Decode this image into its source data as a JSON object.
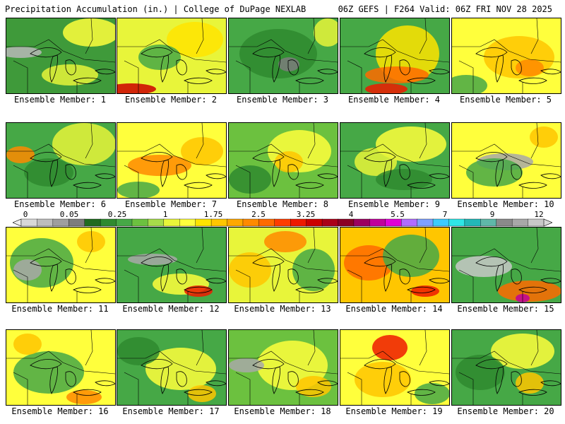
{
  "header": {
    "title_left": "Precipitation Accumulation (in.) | College of DuPage NEXLAB",
    "title_right": "06Z GEFS | F264 Valid: 06Z FRI NOV 28 2025"
  },
  "colorbar": {
    "labels": [
      "0",
      "0.05",
      "0.25",
      "1",
      "1.75",
      "2.5",
      "3.25",
      "4",
      "5.5",
      "7",
      "9",
      "12"
    ],
    "colors": [
      "#d8d8d8",
      "#bdbdbd",
      "#9f9f9f",
      "#7d7d7d",
      "#1f6b1f",
      "#2f8a2f",
      "#46a846",
      "#6cc13f",
      "#a6dc4a",
      "#e8f53a",
      "#ffff3c",
      "#ffe400",
      "#ffc600",
      "#ffa800",
      "#ff8a00",
      "#ff6a00",
      "#ff3c00",
      "#ee1a00",
      "#cc0000",
      "#aa0018",
      "#8b0024",
      "#9b0060",
      "#c0009b",
      "#e000d8",
      "#b06cff",
      "#7da0ff",
      "#3ccbff",
      "#2ee6e6",
      "#22b8b8",
      "#5fb8a8",
      "#8a8a8a",
      "#a8a8a8",
      "#c8c8c8"
    ]
  },
  "members": [
    {
      "label": "Ensemble Member: 1",
      "base": "#3f9a3a",
      "blobs": [
        [
          "#ffff3c",
          120,
          20,
          40,
          20
        ],
        [
          "#b9b9b9",
          20,
          48,
          30,
          8
        ],
        [
          "#e8f53a",
          90,
          80,
          40,
          15
        ]
      ]
    },
    {
      "label": "Ensemble Member: 2",
      "base": "#e8f53a",
      "blobs": [
        [
          "#ffe400",
          110,
          30,
          40,
          25
        ],
        [
          "#cc0000",
          20,
          100,
          35,
          8
        ],
        [
          "#46a846",
          60,
          55,
          30,
          18
        ]
      ]
    },
    {
      "label": "Ensemble Member: 3",
      "base": "#46a846",
      "blobs": [
        [
          "#2f8a2f",
          70,
          50,
          55,
          35
        ],
        [
          "#7d7d7d",
          85,
          65,
          15,
          10
        ],
        [
          "#e8f53a",
          140,
          20,
          20,
          20
        ]
      ]
    },
    {
      "label": "Ensemble Member: 4",
      "base": "#46a846",
      "blobs": [
        [
          "#ffe400",
          95,
          50,
          45,
          40
        ],
        [
          "#ff6a00",
          80,
          80,
          45,
          12
        ],
        [
          "#ee1a00",
          65,
          100,
          30,
          8
        ]
      ]
    },
    {
      "label": "Ensemble Member: 5",
      "base": "#ffff3c",
      "blobs": [
        [
          "#ffc600",
          95,
          55,
          50,
          30
        ],
        [
          "#46a846",
          20,
          95,
          30,
          15
        ],
        [
          "#ff8a00",
          110,
          70,
          20,
          12
        ]
      ]
    },
    {
      "label": "Ensemble Member: 6",
      "base": "#46a846",
      "blobs": [
        [
          "#e8f53a",
          110,
          30,
          45,
          30
        ],
        [
          "#ff8a00",
          20,
          45,
          20,
          12
        ],
        [
          "#2f8a2f",
          60,
          70,
          35,
          20
        ]
      ]
    },
    {
      "label": "Ensemble Member: 7",
      "base": "#ffff3c",
      "blobs": [
        [
          "#ff8a00",
          60,
          60,
          45,
          15
        ],
        [
          "#ffc600",
          120,
          40,
          30,
          20
        ],
        [
          "#46a846",
          30,
          95,
          30,
          12
        ]
      ]
    },
    {
      "label": "Ensemble Member: 8",
      "base": "#6cc13f",
      "blobs": [
        [
          "#ffff3c",
          100,
          40,
          45,
          30
        ],
        [
          "#ffc600",
          85,
          55,
          20,
          15
        ],
        [
          "#2f8a2f",
          30,
          80,
          30,
          20
        ]
      ]
    },
    {
      "label": "Ensemble Member: 9",
      "base": "#46a846",
      "blobs": [
        [
          "#ffff3c",
          100,
          30,
          50,
          25
        ],
        [
          "#e8f53a",
          50,
          55,
          30,
          20
        ],
        [
          "#2f8a2f",
          90,
          80,
          40,
          15
        ]
      ]
    },
    {
      "label": "Ensemble Member: 10",
      "base": "#ffff3c",
      "blobs": [
        [
          "#a8a8a8",
          75,
          55,
          40,
          12
        ],
        [
          "#46a846",
          60,
          70,
          40,
          20
        ],
        [
          "#ffc600",
          130,
          20,
          20,
          15
        ]
      ]
    },
    {
      "label": "Ensemble Member: 11",
      "base": "#ffff3c",
      "blobs": [
        [
          "#46a846",
          50,
          50,
          45,
          35
        ],
        [
          "#a8a8a8",
          30,
          60,
          20,
          15
        ],
        [
          "#ffc600",
          120,
          20,
          20,
          15
        ]
      ]
    },
    {
      "label": "Ensemble Member: 12",
      "base": "#46a846",
      "blobs": [
        [
          "#a8a8a8",
          50,
          45,
          35,
          8
        ],
        [
          "#ffff3c",
          90,
          80,
          40,
          15
        ],
        [
          "#ee1a00",
          115,
          90,
          20,
          8
        ]
      ]
    },
    {
      "label": "Ensemble Member: 13",
      "base": "#e8f53a",
      "blobs": [
        [
          "#ffc600",
          30,
          60,
          30,
          25
        ],
        [
          "#ff8a00",
          80,
          20,
          30,
          15
        ],
        [
          "#46a846",
          120,
          60,
          30,
          30
        ]
      ]
    },
    {
      "label": "Ensemble Member: 14",
      "base": "#ffc600",
      "blobs": [
        [
          "#ff6a00",
          40,
          50,
          35,
          25
        ],
        [
          "#46a846",
          100,
          40,
          40,
          30
        ],
        [
          "#ee1a00",
          120,
          90,
          20,
          8
        ]
      ]
    },
    {
      "label": "Ensemble Member: 15",
      "base": "#46a846",
      "blobs": [
        [
          "#c8c8c8",
          45,
          55,
          40,
          15
        ],
        [
          "#ff6a00",
          110,
          90,
          45,
          15
        ],
        [
          "#c0009b",
          100,
          100,
          10,
          6
        ]
      ]
    },
    {
      "label": "Ensemble Member: 16",
      "base": "#ffff3c",
      "blobs": [
        [
          "#46a846",
          60,
          60,
          50,
          30
        ],
        [
          "#ff8a00",
          110,
          95,
          25,
          10
        ],
        [
          "#ffc600",
          30,
          20,
          20,
          15
        ]
      ]
    },
    {
      "label": "Ensemble Member: 17",
      "base": "#46a846",
      "blobs": [
        [
          "#ffff3c",
          90,
          55,
          50,
          30
        ],
        [
          "#2f8a2f",
          30,
          30,
          30,
          20
        ],
        [
          "#ffc600",
          120,
          90,
          20,
          12
        ]
      ]
    },
    {
      "label": "Ensemble Member: 18",
      "base": "#6cc13f",
      "blobs": [
        [
          "#ffff3c",
          90,
          50,
          50,
          35
        ],
        [
          "#a8a8a8",
          25,
          50,
          25,
          10
        ],
        [
          "#ffc600",
          120,
          80,
          25,
          15
        ]
      ]
    },
    {
      "label": "Ensemble Member: 19",
      "base": "#ffff3c",
      "blobs": [
        [
          "#ee1a00",
          70,
          25,
          25,
          18
        ],
        [
          "#ffc600",
          60,
          70,
          40,
          25
        ],
        [
          "#46a846",
          130,
          90,
          25,
          15
        ]
      ]
    },
    {
      "label": "Ensemble Member: 20",
      "base": "#46a846",
      "blobs": [
        [
          "#ffff3c",
          100,
          30,
          45,
          25
        ],
        [
          "#2f8a2f",
          40,
          60,
          35,
          25
        ],
        [
          "#ffc600",
          110,
          75,
          20,
          15
        ]
      ]
    }
  ]
}
